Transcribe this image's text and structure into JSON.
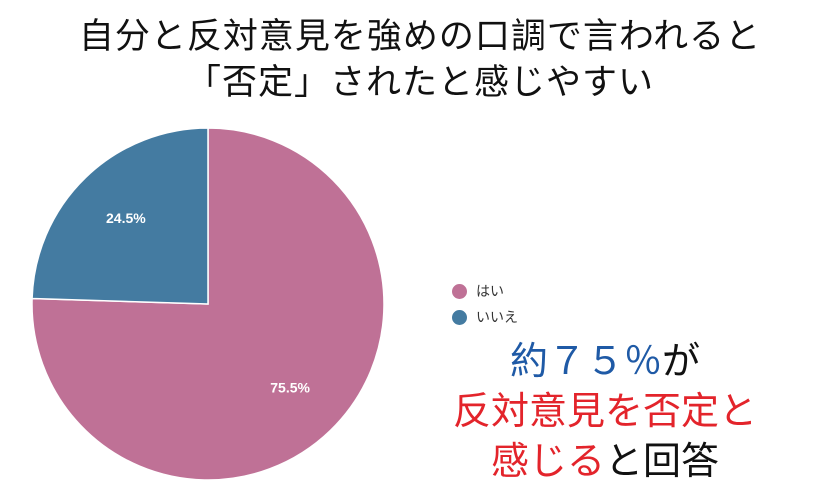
{
  "title": {
    "line1": "自分と反対意見を強めの口調で言われると",
    "line2": "「否定」されたと感じやすい"
  },
  "chart_data": {
    "type": "pie",
    "slices": [
      {
        "name": "はい",
        "value": 75.5,
        "label": "75.5%",
        "color": "#bf7196"
      },
      {
        "name": "いいえ",
        "value": 24.5,
        "label": "24.5%",
        "color": "#447ba1"
      }
    ],
    "legend_position": "right"
  },
  "callout": {
    "line1_blue": "約７５％",
    "line1_black": "が",
    "line2_red": "反対意見を否定と",
    "line3_red": "感じる",
    "line3_black": "と回答",
    "colors": {
      "blue": "#1f5aa6",
      "red": "#e3242b",
      "black": "#111111"
    }
  }
}
